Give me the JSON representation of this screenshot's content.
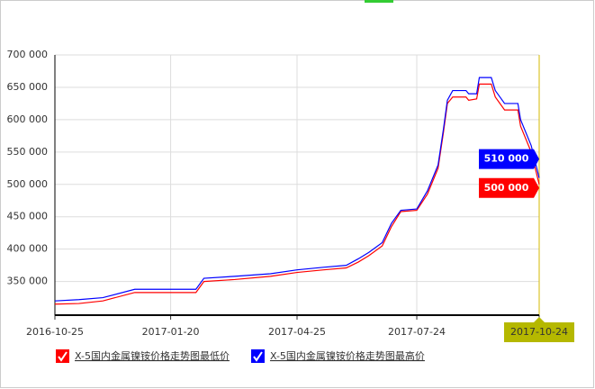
{
  "chart_data": {
    "type": "line",
    "x": [
      "2016-10-25",
      "2016-11-12",
      "2016-11-30",
      "2016-12-24",
      "2017-02-08",
      "2017-02-14",
      "2017-03-09",
      "2017-04-05",
      "2017-04-25",
      "2017-05-15",
      "2017-06-01",
      "2017-06-10",
      "2017-06-18",
      "2017-06-28",
      "2017-07-05",
      "2017-07-12",
      "2017-07-24",
      "2017-08-01",
      "2017-08-09",
      "2017-08-13",
      "2017-08-16",
      "2017-08-20",
      "2017-08-30",
      "2017-09-01",
      "2017-09-07",
      "2017-09-09",
      "2017-09-18",
      "2017-09-21",
      "2017-09-28",
      "2017-10-08",
      "2017-10-10",
      "2017-10-18",
      "2017-10-24"
    ],
    "series": [
      {
        "name": "X-5国内金属镍铵价格走势图最低价",
        "color": "#ff0000",
        "values": [
          315000,
          316000,
          320000,
          333000,
          333000,
          350000,
          353000,
          358000,
          364000,
          368000,
          371000,
          380000,
          390000,
          405000,
          435000,
          458000,
          460000,
          485000,
          525000,
          580000,
          625000,
          635000,
          635000,
          630000,
          632000,
          655000,
          655000,
          635000,
          615000,
          615000,
          590000,
          550000,
          500000
        ],
        "value_labels": {
          "32": "500 000"
        }
      },
      {
        "name": "X-5国内金属镍铵价格走势图最高价",
        "color": "#0000ff",
        "values": [
          320000,
          322000,
          325000,
          338000,
          338000,
          355000,
          358000,
          362000,
          368000,
          372000,
          375000,
          385000,
          395000,
          410000,
          440000,
          460000,
          462000,
          490000,
          530000,
          585000,
          630000,
          645000,
          645000,
          640000,
          640000,
          665000,
          665000,
          645000,
          625000,
          625000,
          600000,
          560000,
          510000
        ],
        "value_labels": {
          "32": "510 000"
        }
      }
    ],
    "xlim": [
      "2016-10-25",
      "2017-10-24"
    ],
    "xticks": [
      "2016-10-25",
      "2017-01-20",
      "2017-04-25",
      "2017-07-24",
      "2017-10-24"
    ],
    "ylim": [
      298000,
      700000
    ],
    "yticks": [
      {
        "value": 350000,
        "label": "350 000"
      },
      {
        "value": 400000,
        "label": "400 000"
      },
      {
        "value": 450000,
        "label": "450 000"
      },
      {
        "value": 500000,
        "label": "500 000"
      },
      {
        "value": 550000,
        "label": "550 000"
      },
      {
        "value": 600000,
        "label": "600 000"
      },
      {
        "value": 650000,
        "label": "650 000"
      },
      {
        "value": 700000,
        "label": "700 000"
      }
    ],
    "grid": true
  }
}
